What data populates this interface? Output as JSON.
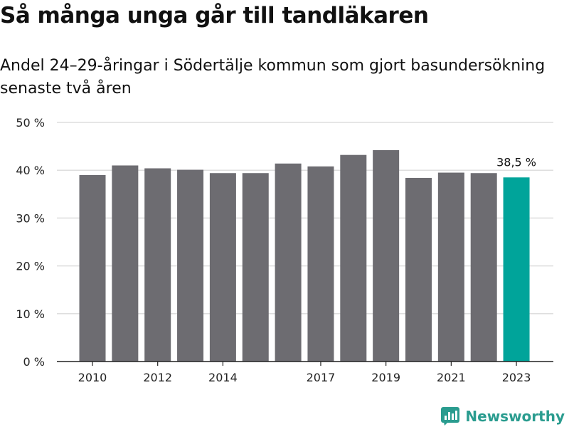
{
  "title": "Så många unga går till tandläkaren",
  "subtitle": "Andel 24–29-åringar i Södertälje kommun som gjort basundersökning senaste två åren",
  "brand": {
    "name": "Newsworthy",
    "icon": "bar-chart-logo-icon",
    "color": "#2a9c8f"
  },
  "colors": {
    "bar": "#6d6c71",
    "highlight": "#00a49a",
    "grid": "#dedede",
    "axis": "#222222"
  },
  "chart_data": {
    "type": "bar",
    "title": "Så många unga går till tandläkaren",
    "subtitle": "Andel 24–29-åringar i Södertälje kommun som gjort basundersökning senaste två åren",
    "xlabel": "",
    "ylabel": "",
    "categories": [
      "2010",
      "2011",
      "2012",
      "2013",
      "2014",
      "2015",
      "2016",
      "2017",
      "2018",
      "2019",
      "2020",
      "2021",
      "2022",
      "2023"
    ],
    "values": [
      39.0,
      41.0,
      40.4,
      40.1,
      39.4,
      39.4,
      41.4,
      40.8,
      43.2,
      44.2,
      38.4,
      39.5,
      39.4,
      38.5
    ],
    "ylim": [
      0,
      50
    ],
    "yticks": [
      0,
      10,
      20,
      30,
      40,
      50
    ],
    "ytick_labels": [
      "0 %",
      "10 %",
      "20 %",
      "30 %",
      "40 %",
      "50 %"
    ],
    "xtick_labels": [
      "2010",
      "2012",
      "2014",
      "2017",
      "2019",
      "2021",
      "2023"
    ],
    "highlight_category": "2023",
    "annotation": {
      "category": "2023",
      "text": "38,5 %"
    },
    "grid": true,
    "legend": "none"
  }
}
